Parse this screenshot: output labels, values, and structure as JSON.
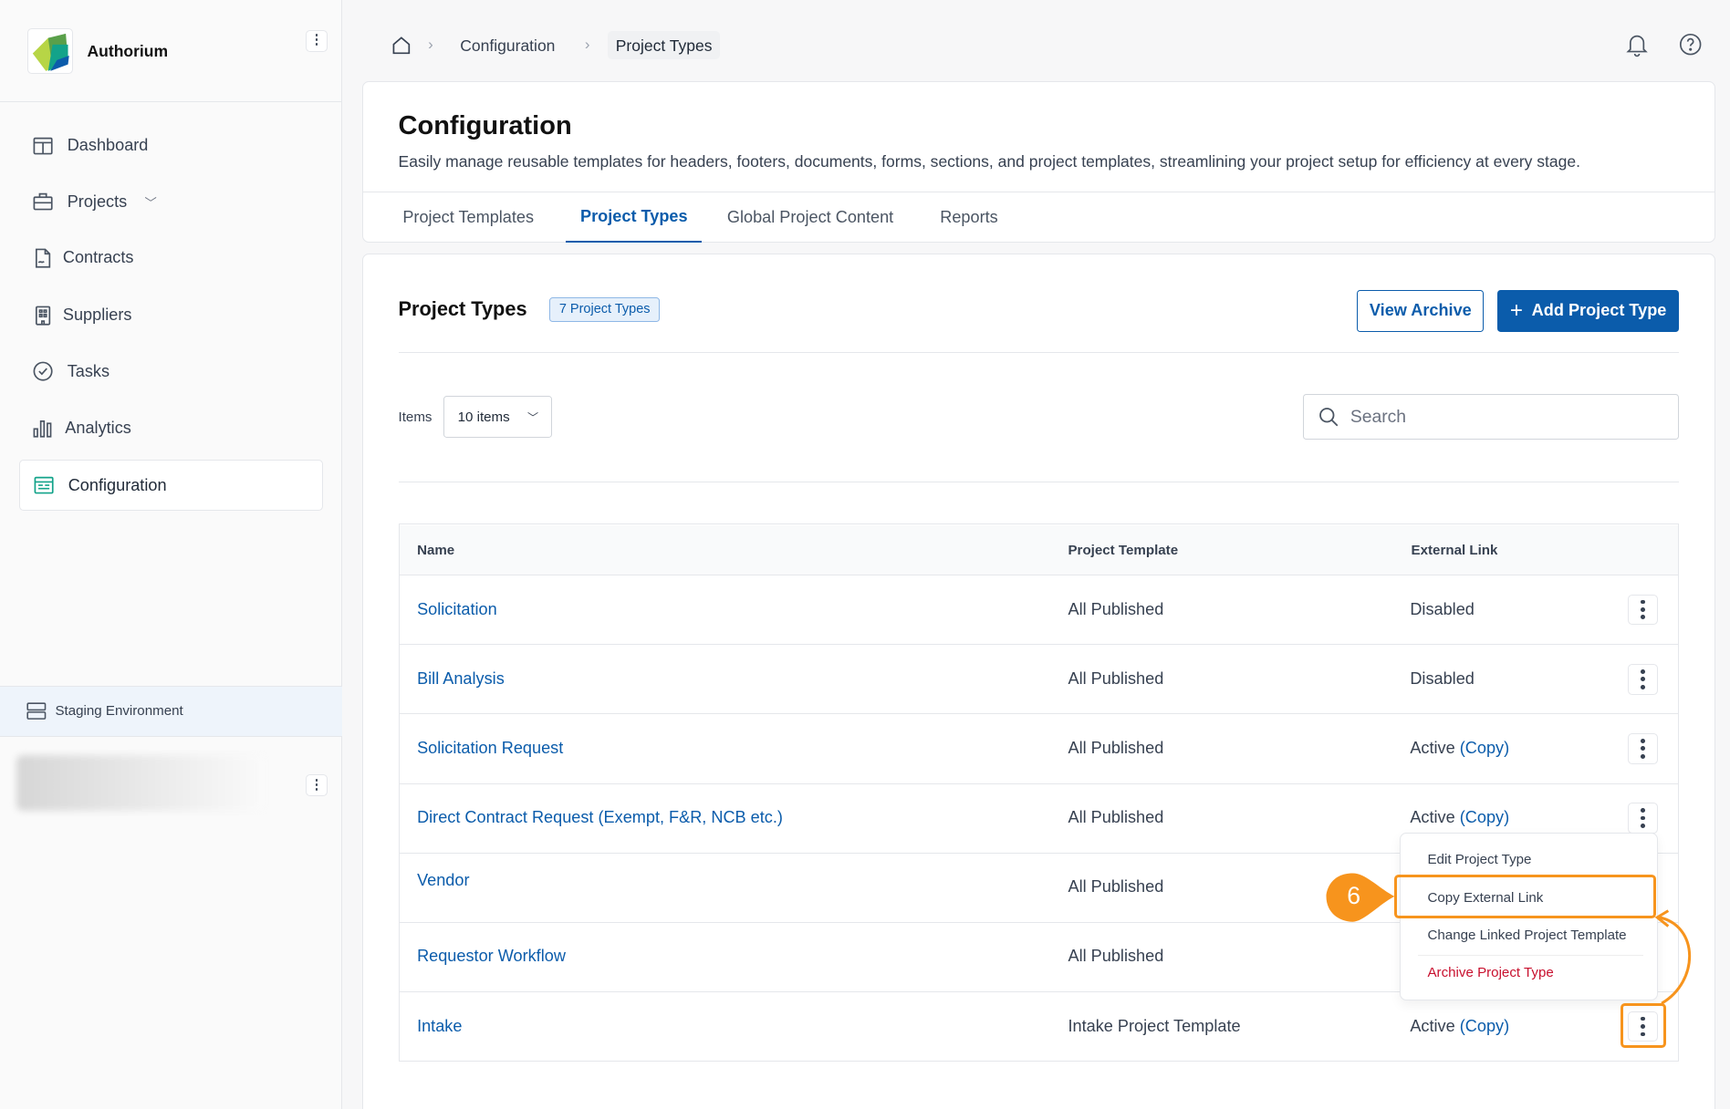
{
  "sidebar": {
    "app_name": "Authorium",
    "items": [
      {
        "label": "Dashboard"
      },
      {
        "label": "Projects"
      },
      {
        "label": "Contracts"
      },
      {
        "label": "Suppliers"
      },
      {
        "label": "Tasks"
      },
      {
        "label": "Analytics"
      },
      {
        "label": "Configuration",
        "active": true
      }
    ],
    "environment": "Staging Environment"
  },
  "breadcrumb": [
    "Configuration",
    "Project Types"
  ],
  "header": {
    "title": "Configuration",
    "subtitle": "Easily manage reusable templates for headers, footers, documents, forms, sections, and project templates, streamlining your project setup for efficiency at every stage.",
    "tabs": [
      "Project Templates",
      "Project Types",
      "Global Project Content",
      "Reports"
    ],
    "active_tab": "Project Types"
  },
  "section": {
    "title": "Project Types",
    "badge": "7 Project Types",
    "view_archive": "View Archive",
    "add": "Add Project Type",
    "items_label": "Items",
    "items_value": "10 items",
    "search_placeholder": "Search"
  },
  "table": {
    "columns": [
      "Name",
      "Project Template",
      "External Link"
    ],
    "rows": [
      {
        "name": "Solicitation",
        "template": "All Published",
        "status": "Disabled",
        "copy": ""
      },
      {
        "name": "Bill Analysis",
        "template": "All Published",
        "status": "Disabled",
        "copy": ""
      },
      {
        "name": "Solicitation Request",
        "template": "All Published",
        "status": "Active",
        "copy": "(Copy)"
      },
      {
        "name": "Direct Contract Request (Exempt, F&R, NCB etc.)",
        "template": "All Published",
        "status": "Active",
        "copy": "(Copy)"
      },
      {
        "name": "Vendor",
        "template": "All Published",
        "status": "",
        "copy": ""
      },
      {
        "name": "Requestor Workflow",
        "template": "All Published",
        "status": "",
        "copy": ""
      },
      {
        "name": "Intake",
        "template": "Intake Project Template",
        "status": "Active",
        "copy": "(Copy)"
      }
    ]
  },
  "menu": {
    "items": [
      "Edit Project Type",
      "Copy External Link",
      "Change Linked Project Template",
      "Archive Project Type"
    ]
  },
  "annotation": {
    "step": "6"
  },
  "colors": {
    "accent": "#0b5cab",
    "danger": "#c8102e",
    "highlight": "#f7941d"
  }
}
